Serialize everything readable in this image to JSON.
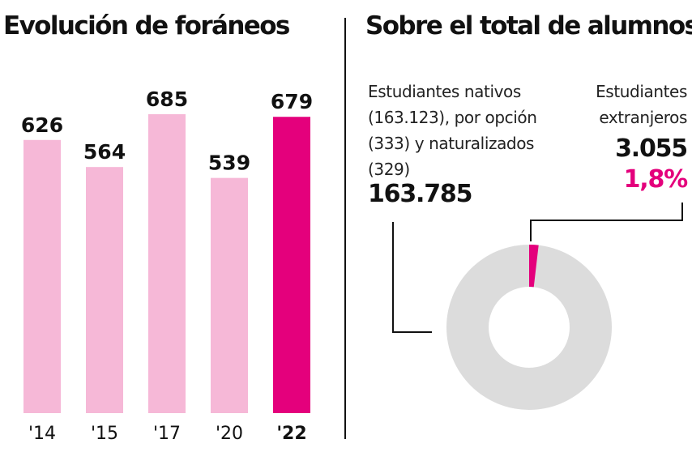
{
  "colors": {
    "bar": "#f6b8d7",
    "bar_highlight": "#e4007c",
    "donut_rest": "#dcdcdc",
    "donut_highlight": "#e4007c",
    "text": "#111111"
  },
  "left_panel": {
    "title": "Evolución de foráneos"
  },
  "right_panel": {
    "title": "Sobre el total de alumnos",
    "native": {
      "description": "Estudiantes nativos (163.123), por opción (333) y naturalizados (329)",
      "total": "163.785"
    },
    "foreign": {
      "description": "Estudiantes extranjeros",
      "total": "3.055",
      "percent": "1,8%"
    }
  },
  "chart_data": [
    {
      "type": "bar",
      "title": "Evolución de foráneos",
      "categories": [
        "'14",
        "'15",
        "'17",
        "'20",
        "'22"
      ],
      "values": [
        626,
        564,
        685,
        539,
        679
      ],
      "value_labels": [
        "626",
        "564",
        "685",
        "539",
        "679"
      ],
      "highlight_index": 4,
      "grid": false
    },
    {
      "type": "pie",
      "title": "Sobre el total de alumnos",
      "donut": true,
      "labels": [
        "Estudiantes nativos (163.123), por opción (333) y naturalizados (329)",
        "Estudiantes extranjeros"
      ],
      "values": [
        163785,
        3055
      ],
      "percent_labels": [
        "",
        "1,8%"
      ]
    }
  ]
}
